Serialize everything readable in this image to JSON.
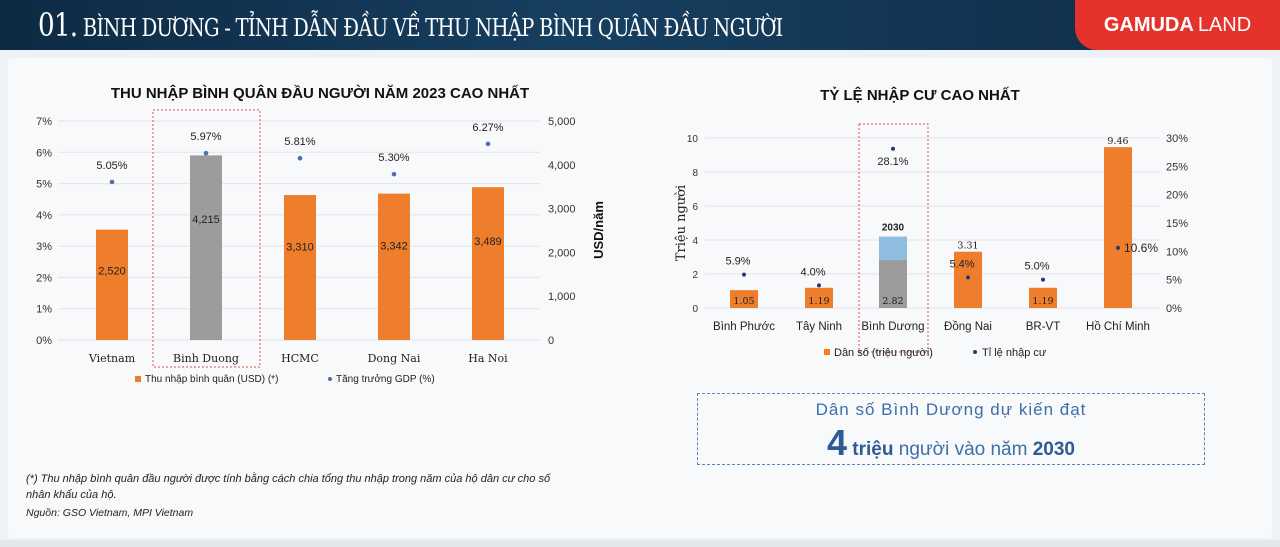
{
  "header": {
    "number": "01.",
    "title": "BÌNH DƯƠNG - TỈNH DẪN ĐẦU VỀ THU NHẬP BÌNH QUÂN ĐẦU NGƯỜI",
    "brand_bold": "GAMUDA",
    "brand_light": "LAND",
    "brand_color": "#e5322d"
  },
  "chart_data": [
    {
      "type": "bar",
      "title": "THU NHẬP BÌNH QUÂN ĐẦU NGƯỜI NĂM 2023 CAO NHẤT",
      "categories": [
        "Vietnam",
        "Binh Duong",
        "HCMC",
        "Dong Nai",
        "Ha Noi"
      ],
      "highlight": "Binh Duong",
      "series": [
        {
          "name": "Thu nhập bình quân  (USD) (*)",
          "kind": "bar",
          "axis": "right",
          "values": [
            2520,
            4215,
            3310,
            3342,
            3489
          ],
          "labels": [
            "2,520",
            "4,215",
            "3,310",
            "3,342",
            "3,489"
          ],
          "color": "#ee7d2c",
          "highlight_color": "#9c9c9c"
        },
        {
          "name": "Tăng trưởng GDP (%)",
          "kind": "scatter",
          "axis": "left",
          "values": [
            5.05,
            5.97,
            5.81,
            5.3,
            6.27
          ],
          "labels": [
            "5.05%",
            "5.97%",
            "5.81%",
            "5.30%",
            "6.27%"
          ],
          "color": "#4a6fb5"
        }
      ],
      "left_axis": {
        "range": [
          0,
          7
        ],
        "ticks": [
          "0%",
          "1%",
          "2%",
          "3%",
          "4%",
          "5%",
          "6%",
          "7%"
        ]
      },
      "right_axis": {
        "label": "USD/năm",
        "range": [
          0,
          5000
        ],
        "ticks": [
          "0",
          "1,000",
          "2,000",
          "3,000",
          "4,000",
          "5,000"
        ]
      },
      "grid": true,
      "legend": "bottom"
    },
    {
      "type": "bar",
      "title": "TỶ LỆ NHẬP CƯ CAO NHẤT",
      "categories": [
        "Bình Phước",
        "Tây Ninh",
        "Bình Dương",
        "Đồng Nai",
        "BR-VT",
        "Hồ Chí Minh"
      ],
      "highlight": "Bình Dương",
      "series": [
        {
          "name": "Dân số (triệu người)",
          "kind": "bar",
          "axis": "left",
          "values": [
            1.05,
            1.19,
            2.82,
            3.31,
            1.19,
            9.46
          ],
          "labels": [
            "1.05",
            "1.19",
            "2.82",
            "3.31",
            "1.19",
            "9.46"
          ],
          "color": "#ee7d2c",
          "highlight_color": "#9c9c9c"
        },
        {
          "name": "Tỉ lệ nhập cư",
          "kind": "scatter",
          "axis": "right",
          "values": [
            5.9,
            4.0,
            28.1,
            5.4,
            5.0,
            10.6
          ],
          "labels": [
            "5.9%",
            "4.0%",
            "28.1%",
            "5.4%",
            "5.0%",
            "10.6%"
          ],
          "color": "#1f3a78"
        }
      ],
      "projection": {
        "category": "Bình Dương",
        "label": "2030",
        "total": 4.2,
        "color": "#8fbde0"
      },
      "left_axis": {
        "label": "Triệu người",
        "range": [
          0,
          10
        ],
        "ticks": [
          "0",
          "2",
          "4",
          "6",
          "8",
          "10"
        ]
      },
      "right_axis": {
        "range": [
          0,
          30
        ],
        "ticks": [
          "0%",
          "5%",
          "10%",
          "15%",
          "20%",
          "25%",
          "30%"
        ]
      },
      "grid": true,
      "legend": "bottom"
    }
  ],
  "callout": {
    "line1": "Dân số Bình Dương dự kiến đạt",
    "big": "4",
    "unit": "triệu",
    "mid": "người vào năm",
    "year": "2030"
  },
  "notes": {
    "footnote1": "(*) Thu nhập bình quân đầu người được tính bằng cách chia tổng thu nhập trong năm của hộ dân cư cho số",
    "footnote2": "nhân khẩu của hộ.",
    "source": "Nguồn: GSO Vietnam, MPI Vietnam"
  }
}
